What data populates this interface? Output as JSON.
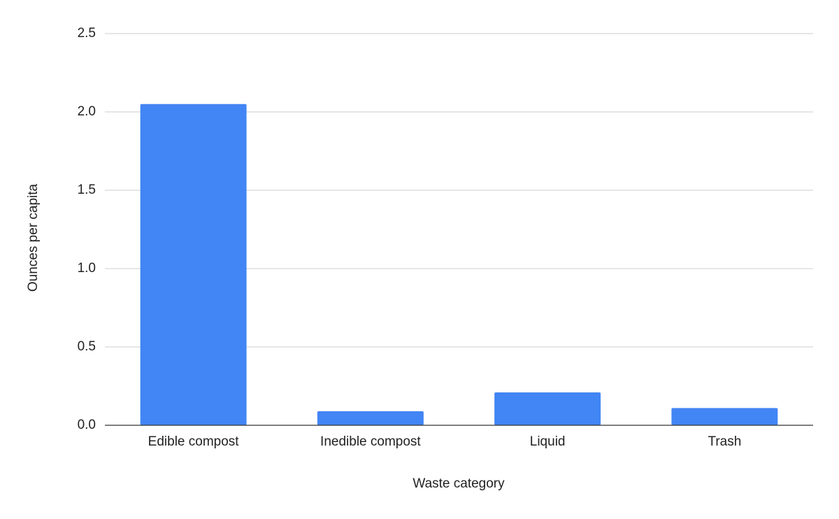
{
  "chart_data": {
    "type": "bar",
    "x_label": "Waste category",
    "y_label": "Ounces per capita",
    "categories": [
      "Edible compost",
      "Inedible compost",
      "Liquid",
      "Trash"
    ],
    "values": [
      2.05,
      0.09,
      0.21,
      0.11
    ],
    "color": "#4285f4",
    "ylim": [
      0,
      2.5
    ],
    "yticks": [
      {
        "value": 0,
        "label": "0.0"
      },
      0.5,
      {
        "value": 1,
        "label": "1.0"
      },
      1.5,
      {
        "value": 2,
        "label": "2.0"
      },
      2.5
    ],
    "grid": true
  }
}
